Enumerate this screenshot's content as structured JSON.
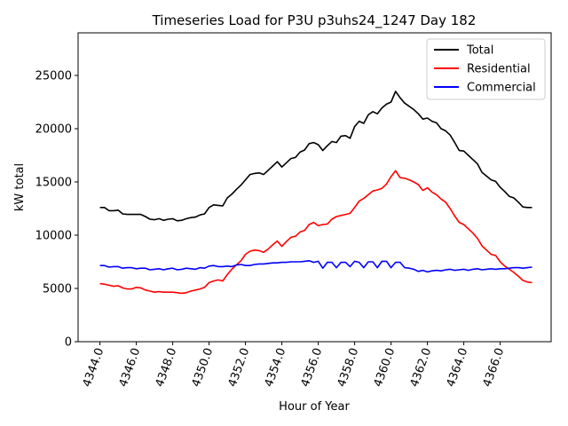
{
  "chart_data": {
    "type": "line",
    "title": "Timeseries Load for P3U p3uhs24_1247  Day 182",
    "xlabel": "Hour of Year",
    "ylabel": "kW total",
    "xlim": [
      4342.8,
      4368.8
    ],
    "ylim": [
      0,
      29000
    ],
    "x_ticks": [
      4344,
      4346,
      4348,
      4350,
      4352,
      4354,
      4356,
      4358,
      4360,
      4362,
      4364,
      4366
    ],
    "x_tick_labels": [
      "4344.0",
      "4346.0",
      "4348.0",
      "4350.0",
      "4352.0",
      "4354.0",
      "4356.0",
      "4358.0",
      "4360.0",
      "4362.0",
      "4364.0",
      "4366.0"
    ],
    "y_ticks": [
      0,
      5000,
      10000,
      15000,
      20000,
      25000
    ],
    "y_tick_labels": [
      "0",
      "5000",
      "10000",
      "15000",
      "20000",
      "25000"
    ],
    "legend_position": "top-right",
    "x_start": 4344,
    "x_step": 0.25,
    "series": [
      {
        "name": "Total",
        "color": "#000000",
        "values": [
          12600,
          12600,
          12300,
          12300,
          12350,
          12000,
          11950,
          11950,
          11950,
          11950,
          11750,
          11500,
          11450,
          11550,
          11400,
          11500,
          11550,
          11350,
          11400,
          11550,
          11650,
          11700,
          11900,
          12000,
          12600,
          12850,
          12800,
          12750,
          13500,
          13850,
          14300,
          14700,
          15200,
          15700,
          15800,
          15850,
          15700,
          16100,
          16500,
          16900,
          16400,
          16800,
          17200,
          17300,
          17800,
          18000,
          18600,
          18700,
          18500,
          17950,
          18400,
          18800,
          18700,
          19300,
          19350,
          19100,
          20200,
          20700,
          20500,
          21300,
          21600,
          21400,
          21950,
          22300,
          22500,
          23500,
          22900,
          22400,
          22100,
          21800,
          21400,
          20900,
          21000,
          20700,
          20550,
          20000,
          19800,
          19400,
          18700,
          17950,
          17900,
          17500,
          17100,
          16700,
          15900,
          15550,
          15200,
          15050,
          14500,
          14100,
          13650,
          13500,
          13100,
          12650,
          12600,
          12600
        ]
      },
      {
        "name": "Residential",
        "color": "#ff0000",
        "values": [
          5450,
          5400,
          5300,
          5200,
          5250,
          5050,
          4950,
          4950,
          5100,
          5050,
          4850,
          4750,
          4650,
          4700,
          4650,
          4650,
          4650,
          4600,
          4550,
          4600,
          4750,
          4850,
          4950,
          5100,
          5550,
          5700,
          5800,
          5700,
          6300,
          6800,
          7200,
          7600,
          8200,
          8500,
          8600,
          8550,
          8400,
          8700,
          9100,
          9450,
          8950,
          9400,
          9800,
          9900,
          10300,
          10450,
          11000,
          11200,
          10900,
          11000,
          11050,
          11500,
          11750,
          11850,
          11950,
          12050,
          12600,
          13200,
          13450,
          13800,
          14150,
          14250,
          14400,
          14800,
          15500,
          16050,
          15400,
          15350,
          15200,
          15000,
          14750,
          14200,
          14450,
          14050,
          13800,
          13400,
          13100,
          12500,
          11800,
          11200,
          11000,
          10600,
          10200,
          9700,
          9000,
          8600,
          8200,
          8100,
          7500,
          7100,
          6800,
          6500,
          6150,
          5750,
          5600,
          5550
        ]
      },
      {
        "name": "Commercial",
        "color": "#0000ff",
        "values": [
          7150,
          7150,
          7000,
          7050,
          7050,
          6900,
          6950,
          6950,
          6850,
          6900,
          6900,
          6750,
          6800,
          6850,
          6750,
          6850,
          6900,
          6750,
          6800,
          6900,
          6850,
          6800,
          6950,
          6900,
          7100,
          7150,
          7050,
          7050,
          7100,
          7050,
          7200,
          7250,
          7150,
          7150,
          7250,
          7300,
          7300,
          7350,
          7400,
          7400,
          7450,
          7450,
          7500,
          7500,
          7500,
          7550,
          7600,
          7450,
          7550,
          6900,
          7450,
          7450,
          6950,
          7450,
          7450,
          7050,
          7550,
          7450,
          6950,
          7500,
          7500,
          6950,
          7550,
          7550,
          6950,
          7450,
          7450,
          6950,
          6900,
          6800,
          6600,
          6700,
          6550,
          6650,
          6700,
          6650,
          6750,
          6800,
          6700,
          6750,
          6800,
          6700,
          6800,
          6850,
          6750,
          6800,
          6850,
          6800,
          6850,
          6850,
          6900,
          6950,
          6950,
          6900,
          6950,
          7000
        ]
      }
    ]
  }
}
